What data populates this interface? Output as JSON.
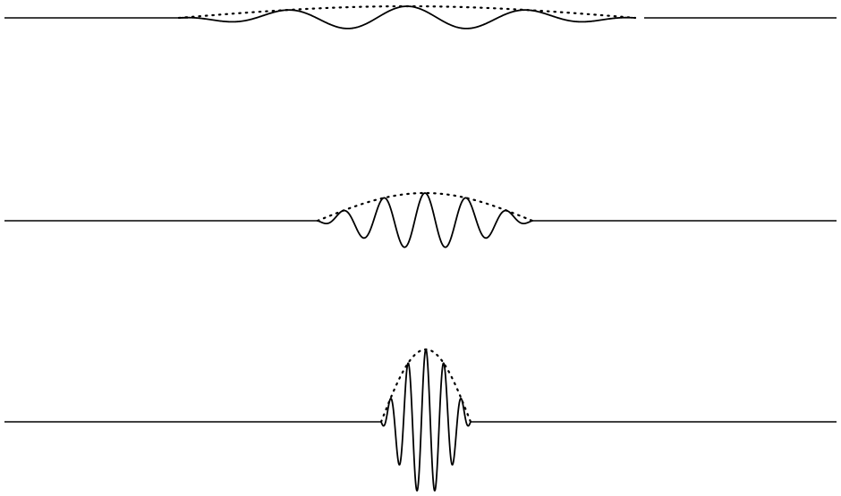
{
  "diagram": {
    "line_color": "#000000",
    "background_color": "#ffffff",
    "wave_packets": [
      {
        "id": "wide",
        "relative_width": 1.0,
        "relative_amplitude": 0.25,
        "oscillations_visible": 5
      },
      {
        "id": "medium",
        "relative_width": 0.5,
        "relative_amplitude": 0.55,
        "oscillations_visible": 5
      },
      {
        "id": "narrow",
        "relative_width": 0.22,
        "relative_amplitude": 1.0,
        "oscillations_visible": 5
      }
    ]
  }
}
